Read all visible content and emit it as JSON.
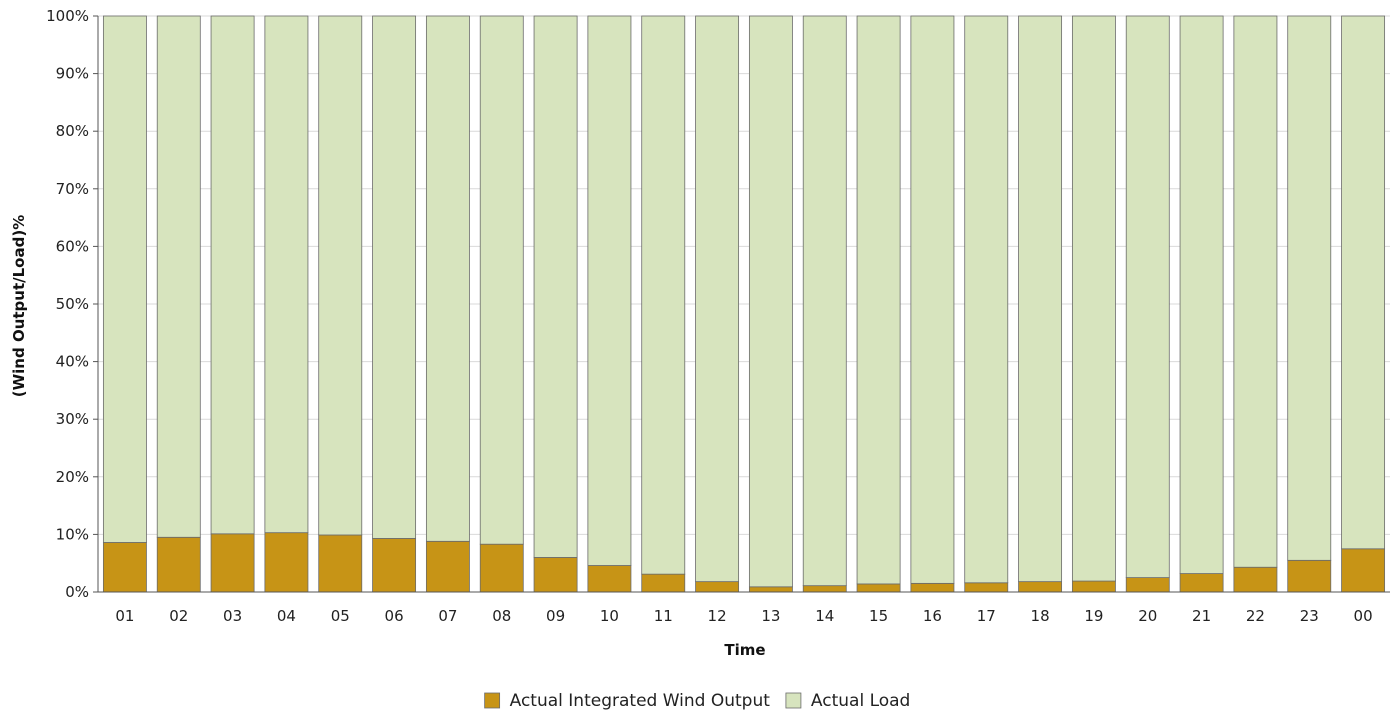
{
  "chart_data": {
    "type": "bar",
    "stacked": true,
    "title": "",
    "xlabel": "Time",
    "ylabel": "(Wind Output/Load)%",
    "ylim": [
      0,
      100
    ],
    "y_ticks": [
      "0%",
      "10%",
      "20%",
      "30%",
      "40%",
      "50%",
      "60%",
      "70%",
      "80%",
      "90%",
      "100%"
    ],
    "grid": true,
    "legend_position": "bottom",
    "categories": [
      "01",
      "02",
      "03",
      "04",
      "05",
      "06",
      "07",
      "08",
      "09",
      "10",
      "11",
      "12",
      "13",
      "14",
      "15",
      "16",
      "17",
      "18",
      "19",
      "20",
      "21",
      "22",
      "23",
      "00"
    ],
    "series": [
      {
        "name": "Actual Integrated Wind Output",
        "color": "#c79416",
        "values": [
          8.6,
          9.5,
          10.1,
          10.3,
          9.9,
          9.3,
          8.8,
          8.3,
          6.0,
          4.6,
          3.1,
          1.8,
          0.9,
          1.1,
          1.4,
          1.5,
          1.6,
          1.8,
          1.9,
          2.5,
          3.2,
          4.3,
          5.5,
          7.5
        ]
      },
      {
        "name": "Actual Load",
        "color": "#d7e4be",
        "values": [
          91.4,
          90.5,
          89.9,
          89.7,
          90.1,
          90.7,
          91.2,
          91.7,
          94.0,
          95.4,
          96.9,
          98.2,
          99.1,
          98.9,
          98.6,
          98.5,
          98.4,
          98.2,
          98.1,
          97.5,
          96.8,
          95.7,
          94.5,
          92.5
        ]
      }
    ]
  }
}
